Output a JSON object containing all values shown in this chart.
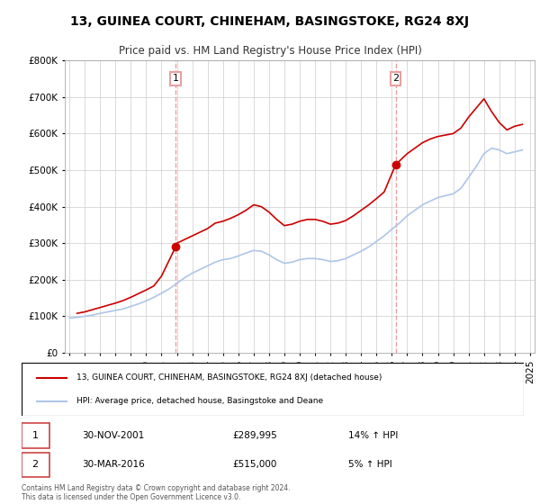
{
  "title": "13, GUINEA COURT, CHINEHAM, BASINGSTOKE, RG24 8XJ",
  "subtitle": "Price paid vs. HM Land Registry's House Price Index (HPI)",
  "legend_line1": "13, GUINEA COURT, CHINEHAM, BASINGSTOKE, RG24 8XJ (detached house)",
  "legend_line2": "HPI: Average price, detached house, Basingstoke and Deane",
  "footer": "Contains HM Land Registry data © Crown copyright and database right 2024.\nThis data is licensed under the Open Government Licence v3.0.",
  "sale1_label": "1",
  "sale1_date": "30-NOV-2001",
  "sale1_price": "£289,995",
  "sale1_hpi": "14% ↑ HPI",
  "sale2_label": "2",
  "sale2_date": "30-MAR-2016",
  "sale2_price": "£515,000",
  "sale2_hpi": "5% ↑ HPI",
  "ylim_min": 0,
  "ylim_max": 800000,
  "yticks": [
    0,
    100000,
    200000,
    300000,
    400000,
    500000,
    600000,
    700000,
    800000
  ],
  "ytick_labels": [
    "£0",
    "£100K",
    "£200K",
    "£300K",
    "£400K",
    "£500K",
    "£600K",
    "£700K",
    "£800K"
  ],
  "hpi_color": "#aec6e8",
  "paid_color": "#cc0000",
  "vline_color": "#e8a0a0",
  "background_color": "#ffffff",
  "plot_bg_color": "#ffffff",
  "grid_color": "#cccccc",
  "sale1_x": 2001.92,
  "sale2_x": 2016.25,
  "hpi_years": [
    1995,
    1995.5,
    1996,
    1996.5,
    1997,
    1997.5,
    1998,
    1998.5,
    1999,
    1999.5,
    2000,
    2000.5,
    2001,
    2001.5,
    2002,
    2002.5,
    2003,
    2003.5,
    2004,
    2004.5,
    2005,
    2005.5,
    2006,
    2006.5,
    2007,
    2007.5,
    2008,
    2008.5,
    2009,
    2009.5,
    2010,
    2010.5,
    2011,
    2011.5,
    2012,
    2012.5,
    2013,
    2013.5,
    2014,
    2014.5,
    2015,
    2015.5,
    2016,
    2016.5,
    2017,
    2017.5,
    2018,
    2018.5,
    2019,
    2019.5,
    2020,
    2020.5,
    2021,
    2021.5,
    2022,
    2022.5,
    2023,
    2023.5,
    2024,
    2024.5
  ],
  "hpi_values": [
    95000,
    97000,
    100000,
    103000,
    108000,
    112000,
    116000,
    120000,
    127000,
    134000,
    142000,
    152000,
    163000,
    175000,
    190000,
    205000,
    218000,
    228000,
    238000,
    248000,
    255000,
    258000,
    265000,
    273000,
    280000,
    278000,
    268000,
    255000,
    245000,
    248000,
    255000,
    258000,
    258000,
    255000,
    250000,
    252000,
    258000,
    268000,
    278000,
    290000,
    305000,
    320000,
    338000,
    355000,
    375000,
    390000,
    405000,
    415000,
    425000,
    430000,
    435000,
    450000,
    480000,
    510000,
    545000,
    560000,
    555000,
    545000,
    550000,
    555000
  ],
  "paid_years": [
    1995.5,
    1996,
    1996.5,
    1997,
    1997.5,
    1998,
    1998.5,
    1999,
    1999.5,
    2000,
    2000.5,
    2001,
    2001.92,
    2002,
    2002.5,
    2003,
    2003.5,
    2004,
    2004.5,
    2005,
    2005.5,
    2006,
    2006.5,
    2007,
    2007.5,
    2008,
    2008.5,
    2009,
    2009.5,
    2010,
    2010.5,
    2011,
    2011.5,
    2012,
    2012.5,
    2013,
    2013.5,
    2014,
    2014.5,
    2015,
    2015.5,
    2016,
    2016.25,
    2016.5,
    2017,
    2017.5,
    2018,
    2018.5,
    2019,
    2019.5,
    2020,
    2020.5,
    2021,
    2021.5,
    2022,
    2022.5,
    2023,
    2023.5,
    2024,
    2024.5
  ],
  "paid_values": [
    108000,
    112000,
    118000,
    124000,
    130000,
    136000,
    143000,
    152000,
    162000,
    172000,
    183000,
    210000,
    289995,
    300000,
    310000,
    320000,
    330000,
    340000,
    355000,
    360000,
    368000,
    378000,
    390000,
    405000,
    400000,
    385000,
    365000,
    348000,
    352000,
    360000,
    365000,
    365000,
    360000,
    352000,
    355000,
    362000,
    375000,
    390000,
    405000,
    422000,
    440000,
    490000,
    515000,
    525000,
    545000,
    560000,
    575000,
    585000,
    592000,
    596000,
    600000,
    615000,
    645000,
    670000,
    695000,
    660000,
    630000,
    610000,
    620000,
    625000
  ],
  "xtick_years": [
    1995,
    1996,
    1997,
    1998,
    1999,
    2000,
    2001,
    2002,
    2003,
    2004,
    2005,
    2006,
    2007,
    2008,
    2009,
    2010,
    2011,
    2012,
    2013,
    2014,
    2015,
    2016,
    2017,
    2018,
    2019,
    2020,
    2021,
    2022,
    2023,
    2024,
    2025
  ]
}
